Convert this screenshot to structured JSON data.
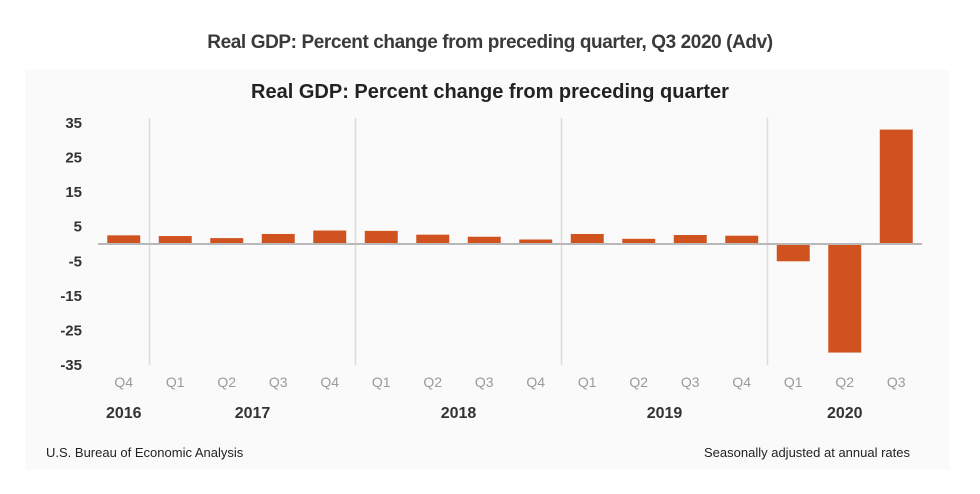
{
  "page": {
    "title": "Real GDP: Percent change from preceding quarter, Q3 2020 (Adv)"
  },
  "chart_data": {
    "type": "bar",
    "title": "Real GDP:  Percent change from preceding quarter",
    "xlabel": "",
    "ylabel": "",
    "ylim": [
      -35,
      35
    ],
    "yticks": [
      35,
      25,
      15,
      5,
      -5,
      -15,
      -25,
      -35
    ],
    "categories": [
      "Q4",
      "Q1",
      "Q2",
      "Q3",
      "Q4",
      "Q1",
      "Q2",
      "Q3",
      "Q4",
      "Q1",
      "Q2",
      "Q3",
      "Q4",
      "Q1",
      "Q2",
      "Q3"
    ],
    "years": [
      {
        "label": "2016",
        "quarters": 1
      },
      {
        "label": "2017",
        "quarters": 4
      },
      {
        "label": "2018",
        "quarters": 4
      },
      {
        "label": "2019",
        "quarters": 4
      },
      {
        "label": "2020",
        "quarters": 3
      }
    ],
    "series": [
      {
        "name": "Real GDP percent change",
        "color": "#d0521f",
        "values": [
          2.5,
          2.3,
          1.7,
          2.9,
          3.9,
          3.8,
          2.7,
          2.1,
          1.3,
          2.9,
          1.5,
          2.6,
          2.4,
          -5.0,
          -31.4,
          33.1
        ]
      }
    ],
    "grid": false,
    "legend": "none",
    "source": "U.S. Bureau of Economic Analysis",
    "note": "Seasonally adjusted at annual rates"
  }
}
